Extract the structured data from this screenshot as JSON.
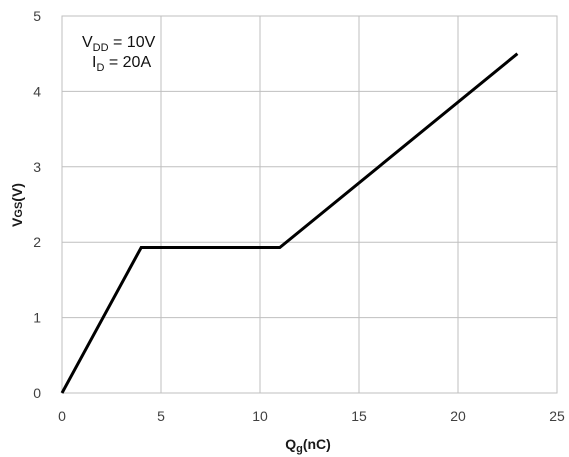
{
  "chart_data": {
    "type": "line",
    "title": "",
    "xlabel": {
      "main": "Q",
      "sub": "g",
      "unit": "(nC)"
    },
    "ylabel": {
      "main": "V",
      "sub": "GS",
      "unit": "(V)"
    },
    "xlim": [
      0,
      25
    ],
    "ylim": [
      0,
      5
    ],
    "xticks": [
      "0",
      "5",
      "10",
      "15",
      "20",
      "25"
    ],
    "yticks": [
      "0",
      "1",
      "2",
      "3",
      "4",
      "5"
    ],
    "grid": true,
    "annotations": [
      {
        "main": "V",
        "sub": "DD",
        "rest": " = 10V"
      },
      {
        "main": "I",
        "sub": "D",
        "rest": " = 20A"
      }
    ],
    "series": [
      {
        "x": [
          0,
          4,
          11,
          23
        ],
        "y": [
          0,
          1.93,
          1.93,
          4.5
        ]
      }
    ],
    "colors": {
      "line": "#000000",
      "grid": "#bfbfbf",
      "frame": "#bfbfbf"
    }
  }
}
